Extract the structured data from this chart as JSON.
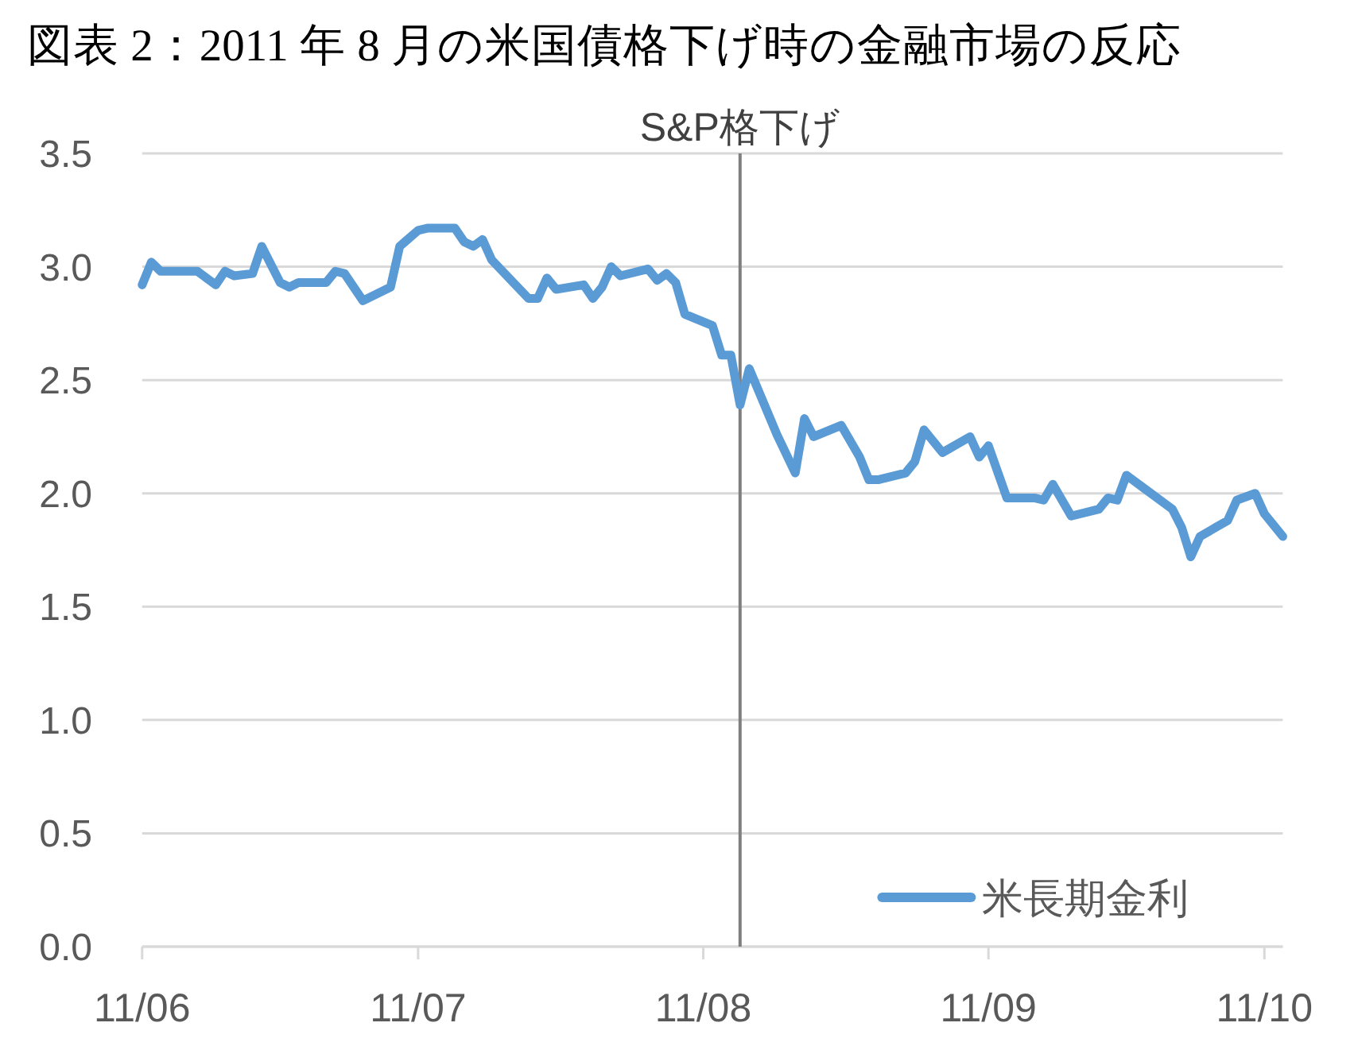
{
  "chart_data": {
    "type": "line",
    "title": "図表 2：2011 年 8 月の米国債格下げ時の金融市場の反応",
    "x": [
      "2011-06-01",
      "2011-06-02",
      "2011-06-03",
      "2011-06-07",
      "2011-06-09",
      "2011-06-10",
      "2011-06-11",
      "2011-06-13",
      "2011-06-14",
      "2011-06-16",
      "2011-06-17",
      "2011-06-18",
      "2011-06-21",
      "2011-06-22",
      "2011-06-23",
      "2011-06-25",
      "2011-06-28",
      "2011-06-29",
      "2011-07-01",
      "2011-07-02",
      "2011-07-05",
      "2011-07-06",
      "2011-07-07",
      "2011-07-08",
      "2011-07-09",
      "2011-07-13",
      "2011-07-14",
      "2011-07-15",
      "2011-07-16",
      "2011-07-19",
      "2011-07-20",
      "2011-07-21",
      "2011-07-22",
      "2011-07-23",
      "2011-07-26",
      "2011-07-27",
      "2011-07-28",
      "2011-07-29",
      "2011-07-30",
      "2011-08-02",
      "2011-08-03",
      "2011-08-04",
      "2011-08-05",
      "2011-08-06",
      "2011-08-09",
      "2011-08-11",
      "2011-08-12",
      "2011-08-13",
      "2011-08-16",
      "2011-08-18",
      "2011-08-19",
      "2011-08-20",
      "2011-08-23",
      "2011-08-24",
      "2011-08-25",
      "2011-08-27",
      "2011-08-30",
      "2011-08-31",
      "2011-09-01",
      "2011-09-03",
      "2011-09-06",
      "2011-09-07",
      "2011-09-08",
      "2011-09-10",
      "2011-09-13",
      "2011-09-14",
      "2011-09-15",
      "2011-09-16",
      "2011-09-18",
      "2011-09-21",
      "2011-09-22",
      "2011-09-23",
      "2011-09-24",
      "2011-09-27",
      "2011-09-28",
      "2011-09-30",
      "2011-10-01",
      "2011-10-03"
    ],
    "series": [
      {
        "name": "米長期金利",
        "color": "#5b9bd5",
        "values": [
          2.92,
          3.02,
          2.98,
          2.98,
          2.92,
          2.98,
          2.96,
          2.97,
          3.09,
          2.93,
          2.91,
          2.93,
          2.93,
          2.98,
          2.97,
          2.85,
          2.91,
          3.09,
          3.16,
          3.17,
          3.17,
          3.11,
          3.09,
          3.12,
          3.03,
          2.86,
          2.86,
          2.95,
          2.9,
          2.92,
          2.86,
          2.91,
          3.0,
          2.96,
          2.99,
          2.94,
          2.97,
          2.93,
          2.79,
          2.74,
          2.61,
          2.61,
          2.39,
          2.55,
          2.26,
          2.09,
          2.33,
          2.25,
          2.3,
          2.16,
          2.06,
          2.06,
          2.09,
          2.14,
          2.28,
          2.18,
          2.25,
          2.16,
          2.21,
          1.98,
          1.98,
          1.97,
          2.04,
          1.9,
          1.93,
          1.98,
          1.97,
          2.08,
          2.02,
          1.93,
          1.85,
          1.72,
          1.81,
          1.88,
          1.97,
          2.0,
          1.91,
          1.81
        ]
      }
    ],
    "xlim": [
      "2011-06-01",
      "2011-10-03"
    ],
    "xticks": [
      {
        "value": "2011-06-01",
        "label": "11/06"
      },
      {
        "value": "2011-07-01",
        "label": "11/07"
      },
      {
        "value": "2011-08-01",
        "label": "11/08"
      },
      {
        "value": "2011-09-01",
        "label": "11/09"
      },
      {
        "value": "2011-10-01",
        "label": "11/10"
      }
    ],
    "ylim": [
      0,
      3.5
    ],
    "yticks": [
      {
        "value": 0,
        "label": "0.0"
      },
      0.5,
      {
        "value": 1,
        "label": "1.0"
      },
      1.5,
      {
        "value": 2,
        "label": "2.0"
      },
      2.5,
      {
        "value": 3,
        "label": "3.0"
      },
      3.5
    ],
    "ref_lines": [
      {
        "axis": "x",
        "value": "2011-08-05",
        "label": "S&P格下げ",
        "color": "#7f7f7f"
      }
    ],
    "grid": "y",
    "legend": "bottom right",
    "line_style": "solid"
  }
}
